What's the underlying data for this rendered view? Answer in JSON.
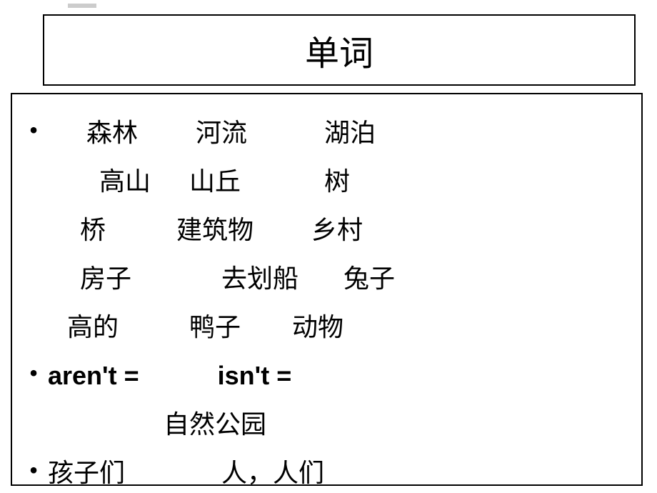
{
  "title": "单词",
  "rows": [
    {
      "bullet": true,
      "bold": false,
      "text": "      森林         河流            湖泊"
    },
    {
      "bullet": false,
      "bold": false,
      "text": "        高山      山丘             树"
    },
    {
      "bullet": false,
      "bold": false,
      "text": "     桥           建筑物         乡村"
    },
    {
      "bullet": false,
      "bold": false,
      "text": "     房子              去划船       兔子"
    },
    {
      "bullet": false,
      "bold": false,
      "text": "   高的           鸭子        动物"
    },
    {
      "bullet": true,
      "bold": true,
      "text": "aren't =           isn't ="
    },
    {
      "bullet": false,
      "bold": false,
      "text": "                  自然公园"
    },
    {
      "bullet": true,
      "bold": false,
      "text": "孩子们               人，人们"
    }
  ],
  "colors": {
    "background": "#ffffff",
    "text": "#000000",
    "border": "#000000",
    "strip": "#cccccc"
  },
  "fonts": {
    "title_size": 48,
    "body_size": 36
  }
}
